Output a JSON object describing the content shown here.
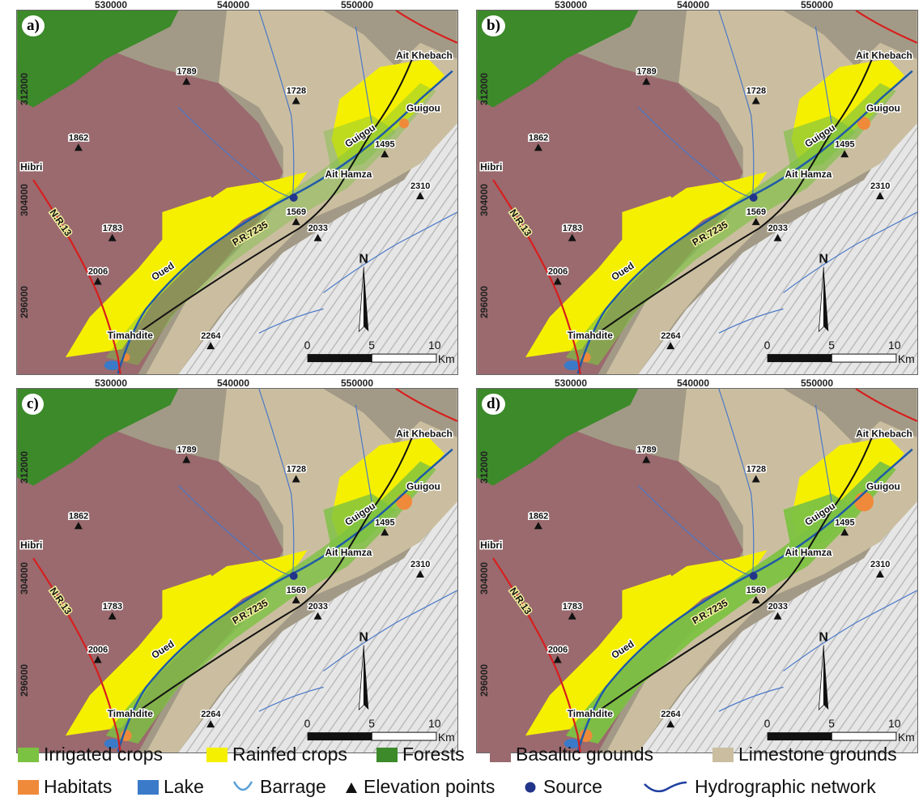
{
  "panels": [
    {
      "letter": "a)"
    },
    {
      "letter": "b)"
    },
    {
      "letter": "c)"
    },
    {
      "letter": "d)"
    }
  ],
  "x_ticks": [
    "530000",
    "540000",
    "550000"
  ],
  "y_ticks": [
    "312000",
    "304000",
    "296000"
  ],
  "places": {
    "ait_khebach": "Ait Khebach",
    "guigou_town": "Guigou",
    "ait_hamza": "Ait Hamza",
    "hibri": "Hibri",
    "timahdite": "Timahdite"
  },
  "river_labels": {
    "oued": "Oued",
    "guigou": "Guigou"
  },
  "roads": {
    "pr": "P.R.7235",
    "nr": "N.R.13"
  },
  "elevations": [
    "1789",
    "1728",
    "1495",
    "1862",
    "1569",
    "2310",
    "1783",
    "2033",
    "2006",
    "2264"
  ],
  "north_label": "N",
  "scale": {
    "zero": "0",
    "five": "5",
    "ten": "10",
    "unit": "Km"
  },
  "legend": {
    "irrigated": {
      "label": "Irrigated crops",
      "color": "#7cc242"
    },
    "rainfed": {
      "label": "Rainfed crops",
      "color": "#f5f000"
    },
    "forests": {
      "label": "Forests",
      "color": "#3c8a2a"
    },
    "basaltic": {
      "label": "Basaltic grounds",
      "color": "#9a6a6e"
    },
    "limestone": {
      "label": "Limestone grounds",
      "color": "#cbbea0"
    },
    "habitats": {
      "label": "Habitats",
      "color": "#ef8a3a"
    },
    "lake": {
      "label": "Lake",
      "color": "#3a7ac8"
    },
    "barrage": {
      "label": "Barrage",
      "color": "#5aa0d8"
    },
    "elevation": {
      "label": "Elevation points",
      "color": "#111111"
    },
    "source": {
      "label": "Source",
      "color": "#23358a"
    },
    "hydro": {
      "label": "Hydrographic network",
      "color": "#1f3fa0"
    }
  }
}
